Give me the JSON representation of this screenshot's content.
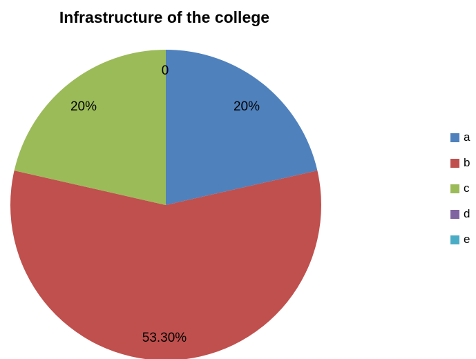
{
  "chart_data": {
    "type": "pie",
    "title": "Infrastructure of the college",
    "categories": [
      "a",
      "b",
      "c",
      "d",
      "e"
    ],
    "values": [
      20,
      53.3,
      20,
      0,
      0
    ],
    "data_labels": [
      "20%",
      "53.30%",
      "20%",
      "0",
      ""
    ],
    "colors": [
      "#4F81BD",
      "#C0504D",
      "#9BBB59",
      "#8064A2",
      "#4BACC6"
    ],
    "legend_position": "right"
  }
}
